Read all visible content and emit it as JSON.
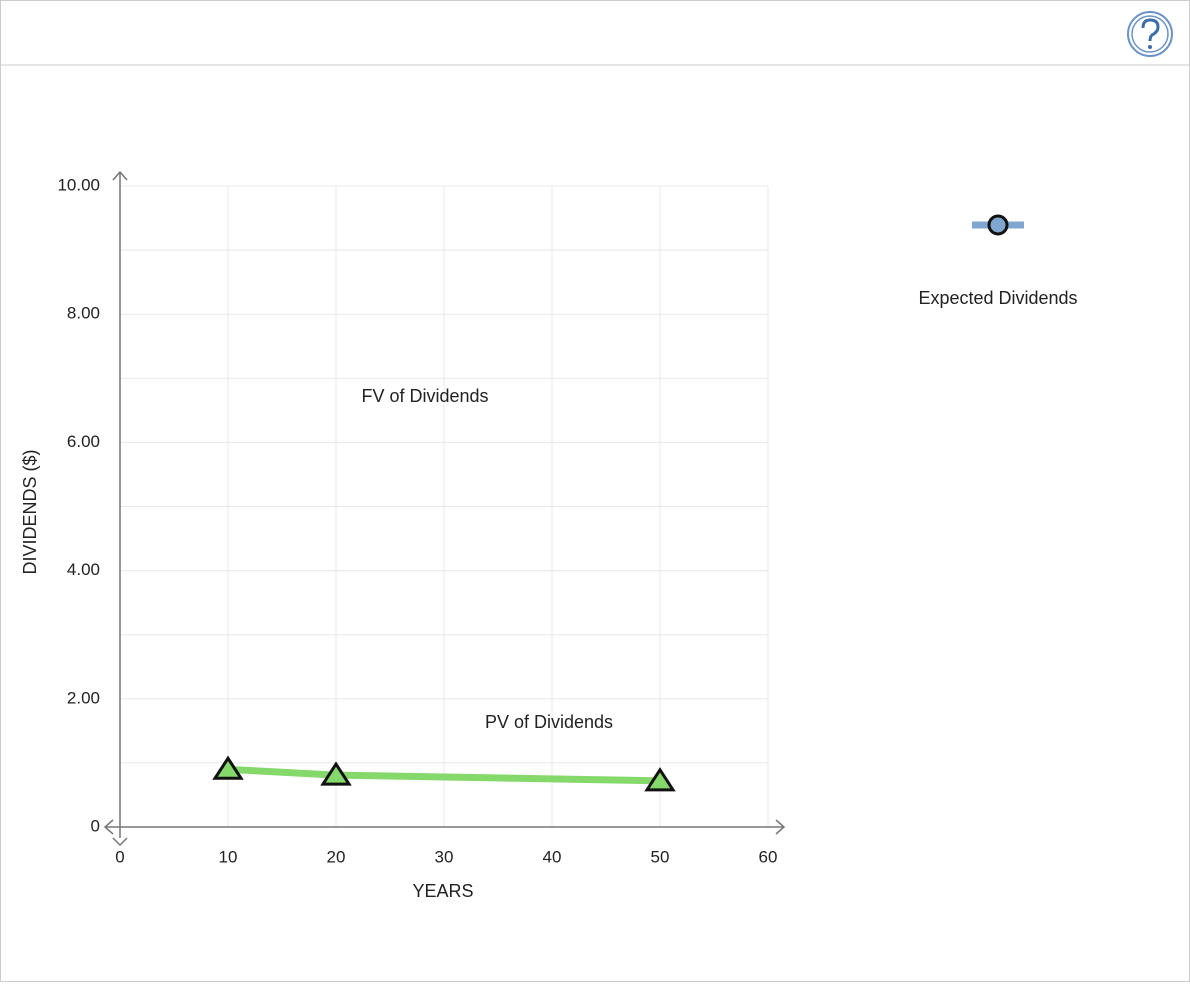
{
  "chart_data": {
    "type": "line",
    "x_label": "YEARS",
    "y_label": "DIVIDENDS ($)",
    "annotation": "FV of Dividends",
    "x": [
      10,
      20,
      50
    ],
    "series": [
      {
        "name": "PV of Dividends",
        "color": "#85d86a",
        "marker": "triangle",
        "in_legend": false,
        "values": [
          0.9,
          0.81,
          0.72
        ]
      },
      {
        "name": "Expected Dividends",
        "color": "#7fa6cf",
        "marker": "circle",
        "in_legend": true,
        "values": [
          null,
          null,
          null
        ]
      }
    ],
    "xlim": [
      0,
      60
    ],
    "xticks": [
      0,
      10,
      20,
      30,
      40,
      50,
      60
    ],
    "ylim": [
      0,
      10
    ],
    "yticks": [
      0,
      {
        "value": 2,
        "label": "2.00"
      },
      {
        "value": 4,
        "label": "4.00"
      },
      {
        "value": 6,
        "label": "6.00"
      },
      {
        "value": 8,
        "label": "8.00"
      },
      {
        "value": 10,
        "label": "10.00"
      }
    ],
    "y_minor_ticks": [
      1,
      3,
      5,
      7,
      9
    ],
    "grid": true
  }
}
